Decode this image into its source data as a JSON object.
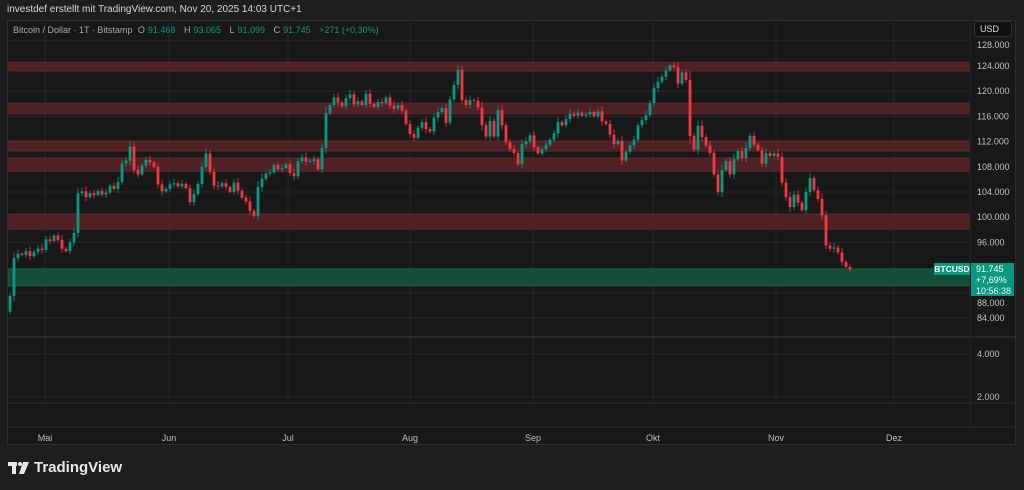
{
  "caption": "investdef erstellt mit TradingView.com, Nov 20, 2025 14:03 UTC+1",
  "legend": {
    "symbol": "Bitcoin / Dollar · 1T · Bitstamp",
    "open_label": "O",
    "open": "91.468",
    "high_label": "H",
    "high": "93.065",
    "low_label": "L",
    "low": "91.099",
    "close_label": "C",
    "close": "91.745",
    "change": "+271 (+0,30%)"
  },
  "currency_button": "USD",
  "price_axis": {
    "ticks": [
      "128.000",
      "124.000",
      "120.000",
      "116.000",
      "112.000",
      "108.000",
      "104.000",
      "100.000",
      "96.000",
      "88.000",
      "84.000"
    ],
    "tick_values": [
      128000,
      124000,
      120000,
      116000,
      112000,
      108000,
      104000,
      100000,
      96000,
      88000,
      84000
    ]
  },
  "volume_axis": {
    "ticks": [
      "4.000",
      "2.000"
    ]
  },
  "time_axis": {
    "months": [
      "Mai",
      "Jun",
      "Jul",
      "Aug",
      "Sep",
      "Okt",
      "Nov",
      "Dez"
    ]
  },
  "last_price": {
    "tag": "BTCUSD",
    "price": "91.745",
    "change_pct": "+7,69%",
    "countdown": "10:56:38"
  },
  "colors": {
    "up": "#089981",
    "down": "#f23645",
    "resistance_zone": "#5a2327",
    "support_zone": "#14503a"
  },
  "chart_data": {
    "type": "candlestick",
    "interval": "1 day",
    "currency": "USD",
    "y_unit": "thousand USD",
    "first_open": 85.0,
    "closes": [
      87.5,
      93.5,
      94.2,
      94.0,
      94.6,
      93.8,
      94.5,
      95.0,
      94.8,
      96.5,
      96.2,
      97.1,
      96.4,
      95.0,
      94.6,
      96.0,
      97.5,
      103.8,
      104.1,
      103.2,
      103.8,
      103.5,
      104.2,
      103.6,
      103.9,
      105.0,
      104.5,
      105.6,
      108.5,
      109.0,
      111.2,
      107.5,
      106.8,
      108.2,
      109.1,
      108.7,
      108.0,
      105.2,
      104.1,
      104.5,
      105.2,
      105.4,
      104.9,
      105.3,
      104.6,
      102.4,
      103.7,
      105.3,
      108.0,
      110.1,
      107.2,
      105.0,
      104.9,
      105.4,
      104.8,
      104.0,
      105.5,
      104.2,
      103.1,
      102.5,
      101.0,
      100.2,
      104.8,
      106.1,
      106.9,
      107.1,
      108.3,
      107.6,
      107.8,
      108.4,
      107.0,
      106.5,
      108.9,
      109.5,
      108.8,
      108.9,
      109.2,
      107.6,
      111.0,
      116.5,
      117.8,
      119.0,
      118.2,
      117.6,
      118.9,
      119.5,
      117.9,
      118.4,
      117.8,
      119.6,
      118.0,
      117.5,
      118.3,
      118.1,
      119.0,
      117.7,
      117.2,
      117.8,
      116.9,
      114.8,
      113.2,
      112.6,
      114.2,
      115.1,
      114.0,
      113.6,
      115.8,
      116.7,
      117.3,
      115.0,
      118.7,
      121.0,
      123.4,
      118.6,
      117.8,
      118.6,
      118.5,
      117.4,
      114.6,
      112.8,
      115.3,
      112.8,
      117.0,
      114.6,
      111.9,
      110.8,
      110.2,
      108.4,
      111.6,
      112.0,
      113.0,
      111.1,
      110.1,
      110.8,
      111.5,
      112.3,
      113.3,
      115.1,
      114.6,
      115.6,
      116.4,
      116.1,
      116.6,
      116.1,
      116.3,
      116.7,
      116.0,
      116.8,
      115.2,
      114.8,
      113.1,
      111.6,
      112.1,
      109.0,
      110.4,
      111.4,
      112.3,
      114.6,
      115.4,
      116.2,
      118.1,
      120.5,
      121.5,
      122.3,
      123.3,
      124.1,
      123.8,
      121.2,
      123.0,
      121.8,
      112.9,
      110.7,
      114.5,
      112.7,
      111.4,
      110.2,
      106.8,
      104.0,
      107.5,
      108.9,
      106.8,
      109.2,
      110.5,
      109.4,
      111.0,
      112.9,
      111.5,
      110.6,
      108.5,
      110.2,
      109.7,
      110.1,
      109.6,
      105.5,
      103.2,
      101.6,
      103.6,
      102.3,
      101.1,
      104.0,
      106.2,
      104.3,
      102.9,
      100.3,
      95.5,
      95.0,
      95.2,
      94.4,
      92.9,
      92.1,
      91.745
    ],
    "zones": [
      {
        "kind": "resistance",
        "from": 123.2,
        "to": 124.6
      },
      {
        "kind": "resistance",
        "from": 116.4,
        "to": 118.1
      },
      {
        "kind": "resistance",
        "from": 110.5,
        "to": 112.1
      },
      {
        "kind": "resistance",
        "from": 107.3,
        "to": 109.4
      },
      {
        "kind": "resistance",
        "from": 98.1,
        "to": 100.5
      },
      {
        "kind": "support",
        "from": 89.1,
        "to": 91.8
      }
    ],
    "ylim": [
      80,
      128
    ],
    "grid": true,
    "xlabel": "",
    "ylabel": ""
  }
}
